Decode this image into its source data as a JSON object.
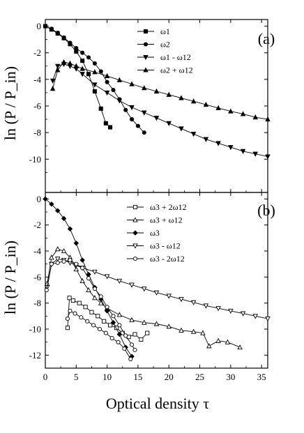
{
  "chart_data": [
    {
      "panel": "(a)",
      "type": "line",
      "xlabel": "Optical density τ",
      "ylabel": "ln (P / P_in)",
      "xlim": [
        0,
        36
      ],
      "ylim": [
        -12.5,
        0.5
      ],
      "x_ticks": [
        0,
        5,
        10,
        15,
        20,
        25,
        30,
        35
      ],
      "y_ticks": [
        0,
        -2,
        -4,
        -6,
        -8,
        -10
      ],
      "legend_position": "top-right",
      "series": [
        {
          "name": "ω1",
          "marker": "square-filled",
          "points": [
            [
              0,
              0
            ],
            [
              1,
              -0.25
            ],
            [
              2,
              -0.55
            ],
            [
              3,
              -0.9
            ],
            [
              4,
              -1.35
            ],
            [
              5,
              -1.9
            ],
            [
              6,
              -2.6
            ],
            [
              7,
              -3.6
            ],
            [
              8,
              -4.9
            ],
            [
              9,
              -6.2
            ],
            [
              9.8,
              -7.3
            ],
            [
              10.5,
              -7.6
            ]
          ]
        },
        {
          "name": "ω2",
          "marker": "circle-filled",
          "points": [
            [
              0,
              0
            ],
            [
              1,
              -0.2
            ],
            [
              2,
              -0.5
            ],
            [
              3,
              -0.85
            ],
            [
              4,
              -1.25
            ],
            [
              5,
              -1.65
            ],
            [
              6,
              -2.0
            ],
            [
              7,
              -2.35
            ],
            [
              8,
              -2.8
            ],
            [
              9,
              -3.4
            ],
            [
              10,
              -4.2
            ],
            [
              11,
              -4.8
            ],
            [
              12,
              -5.5
            ],
            [
              13,
              -6.3
            ],
            [
              14,
              -7.0
            ],
            [
              15,
              -7.5
            ],
            [
              16,
              -8.0
            ]
          ]
        },
        {
          "name": "ω1 - ω12",
          "marker": "triangle-down-filled",
          "points": [
            [
              1.2,
              -4.1
            ],
            [
              2,
              -3.0
            ],
            [
              3,
              -2.85
            ],
            [
              4,
              -3.0
            ],
            [
              5,
              -3.2
            ],
            [
              6,
              -3.6
            ],
            [
              8,
              -4.4
            ],
            [
              10,
              -5.0
            ],
            [
              12,
              -5.6
            ],
            [
              14,
              -6.1
            ],
            [
              16,
              -6.5
            ],
            [
              18,
              -6.9
            ],
            [
              20,
              -7.3
            ],
            [
              22,
              -7.7
            ],
            [
              24,
              -8.1
            ],
            [
              26,
              -8.5
            ],
            [
              28,
              -8.8
            ],
            [
              30,
              -9.1
            ],
            [
              32,
              -9.4
            ],
            [
              34,
              -9.6
            ],
            [
              36,
              -9.8
            ]
          ]
        },
        {
          "name": "ω2 + ω12",
          "marker": "triangle-up-filled",
          "points": [
            [
              1.2,
              -4.7
            ],
            [
              2,
              -3.3
            ],
            [
              3,
              -2.7
            ],
            [
              4,
              -2.8
            ],
            [
              5,
              -3.0
            ],
            [
              6,
              -3.2
            ],
            [
              8,
              -3.45
            ],
            [
              10,
              -3.75
            ],
            [
              12,
              -4.05
            ],
            [
              14,
              -4.35
            ],
            [
              16,
              -4.65
            ],
            [
              18,
              -4.9
            ],
            [
              20,
              -5.15
            ],
            [
              22,
              -5.4
            ],
            [
              24,
              -5.65
            ],
            [
              26,
              -5.9
            ],
            [
              28,
              -6.15
            ],
            [
              30,
              -6.4
            ],
            [
              32,
              -6.6
            ],
            [
              34,
              -6.85
            ],
            [
              36,
              -7.0
            ]
          ]
        }
      ]
    },
    {
      "panel": "(b)",
      "type": "line",
      "xlabel": "Optical density τ",
      "ylabel": "ln (P / P_in)",
      "xlim": [
        0,
        36
      ],
      "ylim": [
        -13,
        0.5
      ],
      "x_ticks": [
        0,
        5,
        10,
        15,
        20,
        25,
        30,
        35
      ],
      "y_ticks": [
        0,
        -2,
        -4,
        -6,
        -8,
        -10,
        -12
      ],
      "legend_position": "top-right",
      "series": [
        {
          "name": "ω3 + 2ω12",
          "marker": "square-open",
          "points": [
            [
              3.6,
              -9.9
            ],
            [
              3.9,
              -7.6
            ],
            [
              4.5,
              -7.8
            ],
            [
              5.5,
              -8.0
            ],
            [
              6.5,
              -8.3
            ],
            [
              7.5,
              -8.7
            ],
            [
              8.5,
              -9.0
            ],
            [
              9.5,
              -9.4
            ],
            [
              10.5,
              -9.7
            ],
            [
              11.5,
              -9.9
            ],
            [
              12.5,
              -10.3
            ],
            [
              13.5,
              -10.6
            ],
            [
              14.5,
              -10.4
            ],
            [
              15.5,
              -10.8
            ],
            [
              16.5,
              -10.3
            ]
          ]
        },
        {
          "name": "ω3 + ω12",
          "marker": "triangle-up-open",
          "points": [
            [
              0.3,
              -6.5
            ],
            [
              1,
              -4.5
            ],
            [
              2,
              -3.85
            ],
            [
              3,
              -4.0
            ],
            [
              4,
              -4.5
            ],
            [
              5,
              -5.4
            ],
            [
              6,
              -6.3
            ],
            [
              7,
              -7.0
            ],
            [
              8,
              -7.6
            ],
            [
              9,
              -8.0
            ],
            [
              10,
              -8.4
            ],
            [
              12,
              -8.9
            ],
            [
              14,
              -9.3
            ],
            [
              16,
              -9.5
            ],
            [
              18,
              -9.6
            ],
            [
              20,
              -9.8
            ],
            [
              22,
              -10.1
            ],
            [
              24,
              -10.2
            ],
            [
              25.5,
              -10.3
            ],
            [
              26.5,
              -11.3
            ],
            [
              28,
              -10.9
            ],
            [
              29.5,
              -11.0
            ],
            [
              31.5,
              -11.4
            ]
          ]
        },
        {
          "name": "ω3",
          "marker": "diamond-filled",
          "points": [
            [
              0,
              0
            ],
            [
              1,
              -0.4
            ],
            [
              2,
              -0.9
            ],
            [
              3,
              -1.5
            ],
            [
              4,
              -2.3
            ],
            [
              5,
              -3.4
            ],
            [
              6,
              -4.7
            ],
            [
              7,
              -5.8
            ],
            [
              8,
              -6.8
            ],
            [
              9,
              -7.7
            ],
            [
              10,
              -8.6
            ],
            [
              11,
              -9.5
            ],
            [
              12,
              -10.4
            ],
            [
              13,
              -11.4
            ],
            [
              14,
              -12.1
            ]
          ]
        },
        {
          "name": "ω3 - ω12",
          "marker": "triangle-down-open",
          "points": [
            [
              0.3,
              -6.8
            ],
            [
              1,
              -5.0
            ],
            [
              2,
              -4.6
            ],
            [
              3,
              -4.7
            ],
            [
              4,
              -4.9
            ],
            [
              5,
              -5.1
            ],
            [
              6,
              -5.3
            ],
            [
              8,
              -5.6
            ],
            [
              10,
              -5.95
            ],
            [
              12,
              -6.3
            ],
            [
              14,
              -6.6
            ],
            [
              16,
              -6.9
            ],
            [
              18,
              -7.2
            ],
            [
              20,
              -7.45
            ],
            [
              22,
              -7.7
            ],
            [
              24,
              -7.95
            ],
            [
              26,
              -8.2
            ],
            [
              28,
              -8.4
            ],
            [
              30,
              -8.6
            ],
            [
              32,
              -8.8
            ],
            [
              34,
              -9.0
            ],
            [
              36,
              -9.2
            ]
          ]
        },
        {
          "name": "ω3 - 2ω12",
          "marker": "circle-open",
          "points": [
            [
              0.2,
              -7.0
            ],
            [
              1,
              -5.0
            ],
            [
              2,
              -4.9
            ],
            [
              3,
              -4.8
            ],
            [
              4,
              -4.7
            ],
            [
              5,
              -5.0
            ],
            [
              6,
              -5.3
            ],
            [
              7,
              -6.1
            ],
            [
              8,
              -6.9
            ],
            [
              9,
              -7.5
            ],
            [
              10,
              -8.3
            ],
            [
              11,
              -9.0
            ],
            [
              12,
              -9.7
            ],
            [
              13,
              -10.5
            ],
            [
              14,
              -11.2
            ],
            [
              14.5,
              -11.6
            ],
            [
              3.6,
              -9.2
            ],
            [
              4,
              -8.6
            ],
            [
              4.8,
              -8.8
            ],
            [
              5.8,
              -9.1
            ],
            [
              6.8,
              -9.4
            ],
            [
              7.8,
              -9.7
            ],
            [
              8.8,
              -10.0
            ],
            [
              9.8,
              -10.3
            ],
            [
              10.8,
              -10.7
            ],
            [
              11.8,
              -11.0
            ],
            [
              12.8,
              -11.5
            ],
            [
              13.8,
              -12.3
            ]
          ]
        }
      ]
    }
  ]
}
